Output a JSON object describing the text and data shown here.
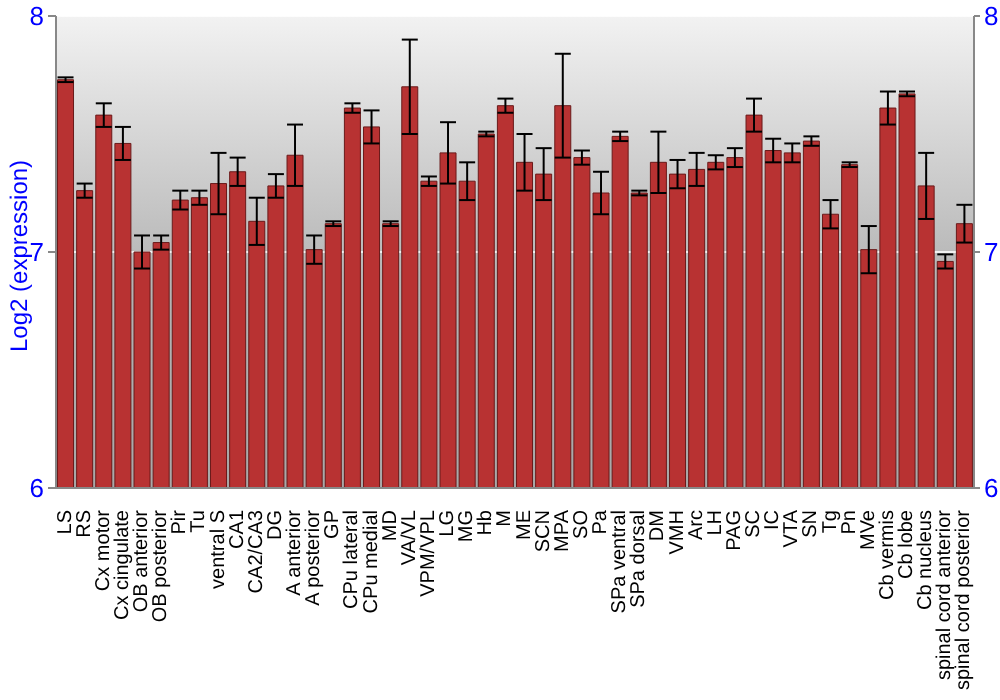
{
  "chart_data": {
    "type": "bar",
    "ylabel": "Log2 (expression)",
    "categories": [
      "LS",
      "RS",
      "Cx motor",
      "Cx cingulate",
      "OB anterior",
      "OB posterior",
      "Pir",
      "Tu",
      "ventral S",
      "CA1",
      "CA2/CA3",
      "DG",
      "A anterior",
      "A posterior",
      "GP",
      "CPu lateral",
      "CPu medial",
      "MD",
      "VA/VL",
      "VPM/VPL",
      "LG",
      "MG",
      "Hb",
      "M",
      "ME",
      "SCN",
      "MPA",
      "SO",
      "Pa",
      "SPa ventral",
      "SPa dorsal",
      "DM",
      "VMH",
      "Arc",
      "LH",
      "PAG",
      "SC",
      "IC",
      "VTA",
      "SN",
      "Tg",
      "Pn",
      "MVe",
      "Cb vermis",
      "Cb lobe",
      "Cb nucleus",
      "spinal cord anterior",
      "spinal cord posterior"
    ],
    "values": [
      7.73,
      7.26,
      7.58,
      7.46,
      7.0,
      7.04,
      7.22,
      7.23,
      7.29,
      7.34,
      7.13,
      7.28,
      7.41,
      7.01,
      7.12,
      7.61,
      7.53,
      7.12,
      7.7,
      7.3,
      7.42,
      7.3,
      7.5,
      7.62,
      7.38,
      7.33,
      7.62,
      7.4,
      7.25,
      7.49,
      7.25,
      7.38,
      7.33,
      7.35,
      7.38,
      7.4,
      7.58,
      7.43,
      7.42,
      7.47,
      7.16,
      7.37,
      7.01,
      7.61,
      7.67,
      7.28,
      6.96,
      7.12
    ],
    "errors": [
      0.01,
      0.03,
      0.05,
      0.07,
      0.07,
      0.03,
      0.04,
      0.03,
      0.13,
      0.06,
      0.1,
      0.05,
      0.13,
      0.06,
      0.01,
      0.02,
      0.07,
      0.01,
      0.2,
      0.02,
      0.13,
      0.08,
      0.01,
      0.03,
      0.12,
      0.11,
      0.22,
      0.03,
      0.09,
      0.02,
      0.01,
      0.13,
      0.06,
      0.07,
      0.03,
      0.04,
      0.07,
      0.05,
      0.04,
      0.02,
      0.06,
      0.01,
      0.1,
      0.07,
      0.01,
      0.14,
      0.03,
      0.08
    ],
    "color": "#b83232",
    "ylim": [
      6,
      8
    ],
    "yticks": [
      6,
      7,
      8
    ],
    "y2lim": [
      6,
      8
    ],
    "y2ticks": [
      6,
      7,
      8
    ],
    "grid": "y"
  }
}
